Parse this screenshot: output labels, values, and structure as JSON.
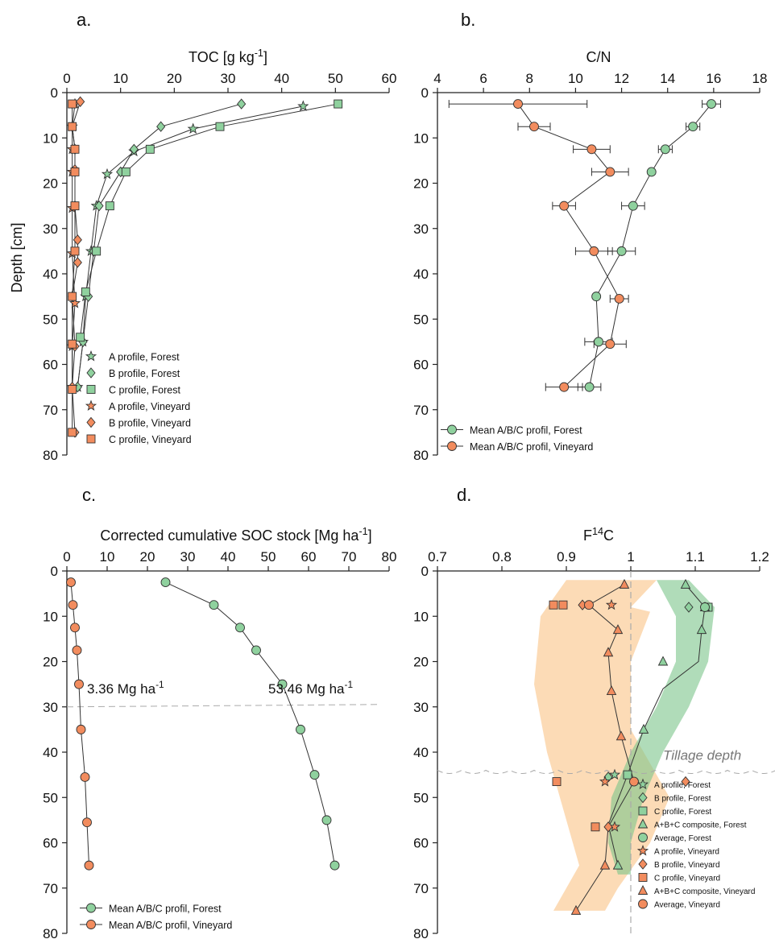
{
  "colors": {
    "forest": "#8fd19e",
    "vineyard": "#f28c5e",
    "forest_band": "#7cc48a",
    "vineyard_band": "#fbcf9e",
    "outline": "#333333",
    "dashed": "#aaaaaa"
  },
  "chart_data": [
    {
      "panel": "a.",
      "type": "line",
      "xlabel_main": "TOC [g kg",
      "xlabel_sup": "-1",
      "xlabel_end": "]",
      "ylabel": "Depth [cm]",
      "x_ticks": [
        "0",
        "10",
        "20",
        "30",
        "40",
        "50",
        "60"
      ],
      "y_ticks": [
        "0",
        "10",
        "20",
        "30",
        "40",
        "50",
        "60",
        "70",
        "80"
      ],
      "xlim": [
        0,
        60
      ],
      "ylim": [
        0,
        80
      ],
      "x_axis_position": "top",
      "y_inverted": true,
      "legend_position": "bottom-left",
      "series": [
        {
          "name": "A profile, Forest",
          "marker": "star",
          "color": "forest",
          "x": [
            44,
            23.5,
            12.5,
            7.5,
            5.5,
            4.5,
            3.5,
            3,
            2
          ],
          "y": [
            3,
            8,
            13,
            18,
            25,
            35,
            45,
            55,
            65
          ]
        },
        {
          "name": "B profile, Forest",
          "marker": "diamond",
          "color": "forest",
          "x": [
            32.5,
            17.5,
            12.5,
            10,
            6,
            5,
            4,
            3,
            2
          ],
          "y": [
            2.5,
            7.5,
            12.5,
            17.5,
            25,
            35,
            45,
            55,
            65
          ]
        },
        {
          "name": "C profile, Forest",
          "marker": "square",
          "color": "forest",
          "x": [
            50.5,
            28.5,
            15.5,
            11,
            8,
            5.5,
            3.5,
            2.5
          ],
          "y": [
            2.5,
            7.5,
            12.5,
            17.5,
            25,
            35,
            44,
            54
          ]
        },
        {
          "name": "A profile, Vineyard",
          "marker": "star",
          "color": "vineyard",
          "x": [
            1.5,
            1,
            1,
            1,
            1,
            1,
            1.5,
            1,
            1
          ],
          "y": [
            2.5,
            7.5,
            12.5,
            17.5,
            25.5,
            35.5,
            46.5,
            56,
            65
          ]
        },
        {
          "name": "B profile, Vineyard",
          "marker": "diamond",
          "color": "vineyard",
          "x": [
            2.5,
            1,
            1.5,
            1.5,
            1.5,
            2,
            2,
            1,
            1.5,
            1,
            1.5
          ],
          "y": [
            2,
            7.5,
            12.5,
            17,
            25,
            32.5,
            37.5,
            45,
            56,
            65,
            75
          ]
        },
        {
          "name": "C profile, Vineyard",
          "marker": "square",
          "color": "vineyard",
          "x": [
            1,
            1,
            1.5,
            1.5,
            1.5,
            1.5,
            1,
            1,
            1,
            1
          ],
          "y": [
            2.5,
            7.5,
            12.5,
            17.5,
            25,
            35,
            45,
            55.5,
            65.5,
            75
          ]
        }
      ]
    },
    {
      "panel": "b.",
      "type": "line",
      "xlabel_main": "C/N",
      "x_ticks": [
        "4",
        "6",
        "8",
        "10",
        "12",
        "14",
        "16",
        "18"
      ],
      "y_ticks": [
        "0",
        "10",
        "20",
        "30",
        "40",
        "50",
        "60",
        "70",
        "80"
      ],
      "xlim": [
        4,
        18
      ],
      "ylim": [
        0,
        80
      ],
      "x_axis_position": "top",
      "y_inverted": true,
      "legend_position": "bottom-left",
      "series": [
        {
          "name": "Mean A/B/C profil, Forest",
          "marker": "circle",
          "color": "forest",
          "x": [
            15.9,
            15.1,
            13.9,
            13.3,
            12.5,
            12,
            10.9,
            11,
            10.6
          ],
          "y": [
            2.5,
            7.5,
            12.5,
            17.5,
            25,
            35,
            45,
            55,
            65
          ],
          "xerr": [
            0.4,
            0.3,
            0.3,
            0.1,
            0.5,
            0.6,
            0.1,
            0.6,
            0.5
          ]
        },
        {
          "name": "Mean A/B/C profil, Vineyard",
          "marker": "circle",
          "color": "vineyard",
          "x": [
            7.5,
            8.2,
            10.7,
            11.5,
            9.5,
            10.8,
            11.9,
            11.5,
            9.5
          ],
          "y": [
            2.5,
            7.5,
            12.5,
            17.5,
            25,
            35,
            45.5,
            55.5,
            65
          ],
          "xerr": [
            3,
            0.7,
            0.8,
            0.8,
            0.5,
            0.8,
            0.4,
            0.7,
            0.8
          ]
        }
      ]
    },
    {
      "panel": "c.",
      "type": "line",
      "xlabel_main": "Corrected cumulative SOC stock [Mg ha",
      "xlabel_sup": "-1",
      "xlabel_end": "]",
      "x_ticks": [
        "0",
        "10",
        "20",
        "30",
        "40",
        "50",
        "60",
        "70",
        "80"
      ],
      "y_ticks": [
        "0",
        "10",
        "20",
        "30",
        "40",
        "50",
        "60",
        "70",
        "80"
      ],
      "xlim": [
        0,
        80
      ],
      "ylim": [
        0,
        80
      ],
      "x_axis_position": "top",
      "y_inverted": true,
      "legend_position": "bottom-left",
      "reference_line_depth": 30,
      "annotations": [
        {
          "text": "3.36 Mg ha",
          "sup": "-1"
        },
        {
          "text": "53.46 Mg ha",
          "sup": "-1"
        }
      ],
      "series": [
        {
          "name": "Mean A/B/C profil, Forest",
          "marker": "circle",
          "color": "forest",
          "x": [
            24.5,
            36.5,
            43,
            47,
            53.5,
            58,
            61.5,
            64.5,
            66.5
          ],
          "y": [
            2.5,
            7.5,
            12.5,
            17.5,
            25,
            35,
            45,
            55,
            65
          ]
        },
        {
          "name": "Mean A/B/C profil, Vineyard",
          "marker": "circle",
          "color": "vineyard",
          "x": [
            1,
            1.5,
            2,
            2.5,
            3,
            3.5,
            4.5,
            5,
            5.5
          ],
          "y": [
            2.5,
            7.5,
            12.5,
            17.5,
            25,
            35,
            45.5,
            55.5,
            65
          ]
        }
      ]
    },
    {
      "panel": "d.",
      "type": "line",
      "xlabel_pre": "F",
      "xlabel_sup": "14",
      "xlabel_end": "C",
      "x_ticks": [
        "0.7",
        "0.8",
        "0.9",
        "1",
        "1.1",
        "1.2"
      ],
      "y_ticks": [
        "0",
        "10",
        "20",
        "30",
        "40",
        "50",
        "60",
        "70",
        "80"
      ],
      "xlim": [
        0.7,
        1.2
      ],
      "ylim": [
        0,
        80
      ],
      "x_axis_position": "top",
      "y_inverted": true,
      "legend_position": "bottom-right",
      "reference_x": 1.0,
      "tillage_label": "Tillage depth",
      "tillage_depth": 44,
      "forest_band": {
        "left": [
          [
            1.04,
            2
          ],
          [
            1.07,
            10
          ],
          [
            1.07,
            20
          ],
          [
            1.04,
            30
          ],
          [
            1.0,
            40
          ],
          [
            0.97,
            50
          ],
          [
            0.965,
            60
          ],
          [
            0.98,
            67
          ]
        ],
        "right": [
          [
            1.09,
            2
          ],
          [
            1.13,
            8
          ],
          [
            1.12,
            20
          ],
          [
            1.09,
            30
          ],
          [
            1.05,
            40
          ],
          [
            1.02,
            50
          ],
          [
            1.0,
            60
          ],
          [
            1.0,
            67
          ]
        ]
      },
      "vineyard_band": {
        "left": [
          [
            0.9,
            2
          ],
          [
            0.86,
            10
          ],
          [
            0.85,
            25
          ],
          [
            0.87,
            40
          ],
          [
            0.9,
            55
          ],
          [
            0.92,
            65
          ],
          [
            0.88,
            75
          ]
        ],
        "right": [
          [
            1.04,
            2
          ],
          [
            1.0,
            8
          ],
          [
            1.03,
            9
          ],
          [
            1.0,
            20
          ],
          [
            1.0,
            35
          ],
          [
            1.04,
            45
          ],
          [
            1.06,
            50
          ],
          [
            1.03,
            60
          ],
          [
            0.98,
            70
          ],
          [
            0.96,
            75
          ]
        ]
      },
      "series": [
        {
          "name": "A profile, Forest",
          "marker": "star",
          "color": "forest",
          "x": [
            0.975
          ],
          "y": [
            45
          ]
        },
        {
          "name": "B profile, Forest",
          "marker": "diamond",
          "color": "forest",
          "x": [
            1.09,
            0.965
          ],
          "y": [
            8,
            45.5
          ]
        },
        {
          "name": "C profile, Forest",
          "marker": "square",
          "color": "forest",
          "x": [
            1.12,
            0.995
          ],
          "y": [
            8,
            45
          ]
        },
        {
          "name": "A+B+C composite, Forest",
          "marker": "triangle",
          "color": "forest",
          "x": [
            1.085,
            1.115,
            1.11,
            1.05,
            1.02,
            0.98
          ],
          "y": [
            3,
            8,
            13,
            20,
            35,
            65
          ]
        },
        {
          "name": "Average, Forest",
          "marker": "circle",
          "color": "forest",
          "x": [
            1.115
          ],
          "y": [
            8
          ]
        },
        {
          "name": "A profile, Vineyard",
          "marker": "star",
          "color": "vineyard",
          "x": [
            0.97,
            0.96,
            0.975
          ],
          "y": [
            7.5,
            46.5,
            56.5
          ]
        },
        {
          "name": "B profile, Vineyard",
          "marker": "diamond",
          "color": "vineyard",
          "x": [
            0.925,
            1.085,
            0.965
          ],
          "y": [
            7.5,
            46.5,
            56.5
          ]
        },
        {
          "name": "C profile, Vineyard",
          "marker": "square",
          "color": "vineyard",
          "x": [
            0.88,
            0.895,
            0.885,
            0.945
          ],
          "y": [
            7.5,
            7.5,
            46.5,
            56.5
          ]
        },
        {
          "name": "A+B+C composite, Vineyard",
          "marker": "triangle",
          "color": "vineyard",
          "x": [
            0.99,
            0.98,
            0.965,
            0.97,
            0.985,
            0.96,
            0.915
          ],
          "y": [
            3,
            13,
            18,
            26.5,
            36.5,
            65,
            75
          ]
        },
        {
          "name": "Average, Vineyard",
          "marker": "circle",
          "color": "vineyard",
          "x": [
            0.935,
            1.005
          ],
          "y": [
            7.5,
            46.5
          ]
        }
      ],
      "lines": [
        {
          "color": "vineyard",
          "x": [
            0.99,
            0.935,
            0.98,
            0.965,
            0.97,
            0.985,
            1.005,
            0.965,
            0.96,
            0.915
          ],
          "y": [
            3,
            7.5,
            13,
            18,
            26.5,
            36.5,
            46.5,
            56.5,
            65,
            75
          ]
        },
        {
          "color": "forest",
          "x": [
            1.085,
            1.115,
            1.11,
            1.105,
            1.05,
            1.02,
            0.995,
            0.965,
            0.98
          ],
          "y": [
            3,
            8,
            13,
            20,
            26,
            35,
            45,
            56,
            65
          ]
        }
      ]
    }
  ]
}
